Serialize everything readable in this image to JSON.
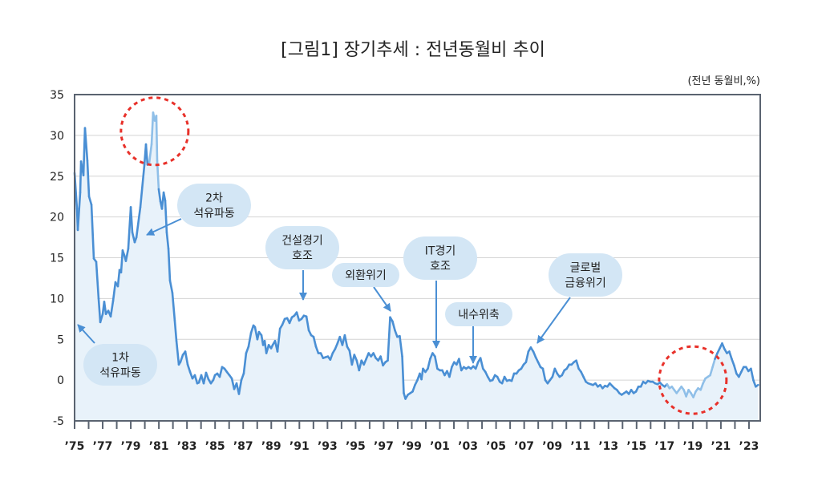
{
  "title": "[그림1]  장기추세 : 전년동월비 추이",
  "unit_label": "(전년 동월비,%)",
  "colors": {
    "line": "#4a8fd4",
    "line_highlight": "#8fbfe8",
    "fill": "#e8f2fa",
    "bubble": "#d3e6f5",
    "circle": "#e8312a",
    "axis": "#5a6370",
    "grid": "#d4d4d4"
  },
  "chart_data": {
    "type": "area",
    "title": "[그림1]  장기추세 : 전년동월비 추이",
    "ylabel": "(전년 동월비,%)",
    "xlabel": "",
    "ylim": [
      -5,
      35
    ],
    "xlim": [
      1975,
      2023.8
    ],
    "grid": true,
    "y_ticks": [
      "35",
      "30",
      "25",
      "20",
      "15",
      "10",
      "5",
      "0",
      "-5"
    ],
    "x_ticks": [
      {
        "year": 1975,
        "label": "’75"
      },
      {
        "year": 1977,
        "label": "’77"
      },
      {
        "year": 1979,
        "label": "’79"
      },
      {
        "year": 1981,
        "label": "’81"
      },
      {
        "year": 1983,
        "label": "’83"
      },
      {
        "year": 1985,
        "label": "’85"
      },
      {
        "year": 1987,
        "label": "’87"
      },
      {
        "year": 1989,
        "label": "’89"
      },
      {
        "year": 1991,
        "label": "’91"
      },
      {
        "year": 1993,
        "label": "’93"
      },
      {
        "year": 1995,
        "label": "’95"
      },
      {
        "year": 1997,
        "label": "’97"
      },
      {
        "year": 1999,
        "label": "’99"
      },
      {
        "year": 2001,
        "label": "’01"
      },
      {
        "year": 2003,
        "label": "’03"
      },
      {
        "year": 2005,
        "label": "’05"
      },
      {
        "year": 2007,
        "label": "’07"
      },
      {
        "year": 2009,
        "label": "’09"
      },
      {
        "year": 2011,
        "label": "’11"
      },
      {
        "year": 2013,
        "label": "’13"
      },
      {
        "year": 2015,
        "label": "’15"
      },
      {
        "year": 2017,
        "label": "’17"
      },
      {
        "year": 2019,
        "label": "’19"
      },
      {
        "year": 2021,
        "label": "’21"
      },
      {
        "year": 2023,
        "label": "’23"
      }
    ],
    "highlight_ranges": [
      [
        1980.3,
        1981.0
      ],
      [
        2017.2,
        2020.6
      ]
    ],
    "highlight_circles": [
      {
        "year": 1980.7,
        "value": 30.5
      },
      {
        "year": 2019.0,
        "value": 0.0
      }
    ],
    "annotations": [
      {
        "lines": [
          "1차",
          "석유파동"
        ]
      },
      {
        "lines": [
          "2차",
          "석유파동"
        ]
      },
      {
        "lines": [
          "건설경기",
          "호조"
        ]
      },
      {
        "lines": [
          "외환위기"
        ]
      },
      {
        "lines": [
          "IT경기",
          "호조"
        ]
      },
      {
        "lines": [
          "내수위축"
        ]
      },
      {
        "lines": [
          "글로벌",
          "금융위기"
        ]
      }
    ],
    "points": [
      [
        1975.0,
        25.4
      ],
      [
        1975.17,
        21.0
      ],
      [
        1975.23,
        18.4
      ],
      [
        1975.4,
        23.0
      ],
      [
        1975.46,
        26.8
      ],
      [
        1975.63,
        25.1
      ],
      [
        1975.74,
        30.9
      ],
      [
        1975.91,
        26.9
      ],
      [
        1976.03,
        22.5
      ],
      [
        1976.2,
        21.5
      ],
      [
        1976.37,
        14.9
      ],
      [
        1976.54,
        14.5
      ],
      [
        1976.71,
        10.0
      ],
      [
        1976.83,
        7.1
      ],
      [
        1977.0,
        8.1
      ],
      [
        1977.11,
        9.6
      ],
      [
        1977.23,
        8.1
      ],
      [
        1977.4,
        8.5
      ],
      [
        1977.57,
        7.8
      ],
      [
        1977.74,
        9.7
      ],
      [
        1977.91,
        12.0
      ],
      [
        1978.08,
        11.5
      ],
      [
        1978.2,
        13.5
      ],
      [
        1978.31,
        13.2
      ],
      [
        1978.42,
        15.9
      ],
      [
        1978.54,
        15.3
      ],
      [
        1978.65,
        14.6
      ],
      [
        1978.82,
        16.1
      ],
      [
        1979.0,
        21.2
      ],
      [
        1979.11,
        18.1
      ],
      [
        1979.28,
        16.9
      ],
      [
        1979.4,
        17.5
      ],
      [
        1979.68,
        21.2
      ],
      [
        1979.97,
        26.4
      ],
      [
        1980.08,
        28.9
      ],
      [
        1980.19,
        26.4
      ],
      [
        1980.31,
        26.6
      ],
      [
        1980.48,
        28.9
      ],
      [
        1980.59,
        32.8
      ],
      [
        1980.71,
        31.8
      ],
      [
        1980.82,
        32.4
      ],
      [
        1980.88,
        26.9
      ],
      [
        1980.99,
        23.4
      ],
      [
        1981.11,
        21.9
      ],
      [
        1981.22,
        21.0
      ],
      [
        1981.34,
        23.0
      ],
      [
        1981.45,
        22.0
      ],
      [
        1981.56,
        18.1
      ],
      [
        1981.68,
        16.1
      ],
      [
        1981.79,
        12.2
      ],
      [
        1981.96,
        10.7
      ],
      [
        1982.13,
        7.3
      ],
      [
        1982.25,
        4.8
      ],
      [
        1982.42,
        1.9
      ],
      [
        1982.53,
        2.2
      ],
      [
        1982.71,
        3.1
      ],
      [
        1982.88,
        3.5
      ],
      [
        1983.05,
        1.9
      ],
      [
        1983.22,
        1.0
      ],
      [
        1983.39,
        0.2
      ],
      [
        1983.56,
        0.6
      ],
      [
        1983.73,
        -0.4
      ],
      [
        1983.85,
        -0.3
      ],
      [
        1984.02,
        0.6
      ],
      [
        1984.19,
        -0.4
      ],
      [
        1984.36,
        0.9
      ],
      [
        1984.53,
        0.1
      ],
      [
        1984.7,
        -0.4
      ],
      [
        1984.87,
        0.0
      ],
      [
        1984.99,
        0.6
      ],
      [
        1985.16,
        0.8
      ],
      [
        1985.33,
        0.4
      ],
      [
        1985.5,
        1.6
      ],
      [
        1985.67,
        1.4
      ],
      [
        1985.84,
        1.0
      ],
      [
        1986.02,
        0.6
      ],
      [
        1986.19,
        0.2
      ],
      [
        1986.36,
        -1.1
      ],
      [
        1986.53,
        -0.4
      ],
      [
        1986.7,
        -1.7
      ],
      [
        1986.87,
        0.0
      ],
      [
        1987.04,
        0.8
      ],
      [
        1987.21,
        3.3
      ],
      [
        1987.38,
        4.1
      ],
      [
        1987.56,
        5.8
      ],
      [
        1987.73,
        6.7
      ],
      [
        1987.84,
        6.5
      ],
      [
        1988.01,
        5.0
      ],
      [
        1988.13,
        5.9
      ],
      [
        1988.3,
        5.5
      ],
      [
        1988.42,
        4.3
      ],
      [
        1988.53,
        4.8
      ],
      [
        1988.65,
        3.3
      ],
      [
        1988.82,
        4.3
      ],
      [
        1988.99,
        3.9
      ],
      [
        1989.1,
        4.3
      ],
      [
        1989.27,
        4.8
      ],
      [
        1989.44,
        3.5
      ],
      [
        1989.62,
        6.3
      ],
      [
        1989.79,
        6.8
      ],
      [
        1989.96,
        7.5
      ],
      [
        1990.13,
        7.6
      ],
      [
        1990.3,
        7.0
      ],
      [
        1990.47,
        7.7
      ],
      [
        1990.64,
        7.9
      ],
      [
        1990.81,
        8.3
      ],
      [
        1990.98,
        7.3
      ],
      [
        1991.15,
        7.5
      ],
      [
        1991.32,
        7.9
      ],
      [
        1991.5,
        7.8
      ],
      [
        1991.67,
        6.1
      ],
      [
        1991.84,
        5.5
      ],
      [
        1992.01,
        5.3
      ],
      [
        1992.18,
        4.1
      ],
      [
        1992.35,
        3.3
      ],
      [
        1992.52,
        3.3
      ],
      [
        1992.69,
        2.7
      ],
      [
        1992.86,
        2.8
      ],
      [
        1993.03,
        2.9
      ],
      [
        1993.2,
        2.5
      ],
      [
        1993.37,
        3.3
      ],
      [
        1993.54,
        3.8
      ],
      [
        1993.71,
        4.5
      ],
      [
        1993.88,
        5.3
      ],
      [
        1994.06,
        4.3
      ],
      [
        1994.23,
        5.5
      ],
      [
        1994.4,
        4.1
      ],
      [
        1994.57,
        3.6
      ],
      [
        1994.74,
        1.9
      ],
      [
        1994.91,
        3.1
      ],
      [
        1995.08,
        2.4
      ],
      [
        1995.25,
        1.2
      ],
      [
        1995.42,
        2.4
      ],
      [
        1995.59,
        1.9
      ],
      [
        1995.76,
        2.6
      ],
      [
        1995.93,
        3.3
      ],
      [
        1996.1,
        2.9
      ],
      [
        1996.27,
        3.3
      ],
      [
        1996.44,
        2.7
      ],
      [
        1996.61,
        2.4
      ],
      [
        1996.78,
        2.9
      ],
      [
        1996.95,
        1.8
      ],
      [
        1997.12,
        2.2
      ],
      [
        1997.29,
        2.4
      ],
      [
        1997.46,
        7.7
      ],
      [
        1997.63,
        7.2
      ],
      [
        1997.8,
        6.1
      ],
      [
        1997.97,
        5.3
      ],
      [
        1998.14,
        5.4
      ],
      [
        1998.32,
        2.9
      ],
      [
        1998.43,
        -1.6
      ],
      [
        1998.55,
        -2.3
      ],
      [
        1998.72,
        -1.8
      ],
      [
        1998.89,
        -1.6
      ],
      [
        1999.06,
        -1.4
      ],
      [
        1999.23,
        -0.6
      ],
      [
        1999.4,
        0.0
      ],
      [
        1999.57,
        0.8
      ],
      [
        1999.69,
        0.1
      ],
      [
        1999.8,
        1.4
      ],
      [
        1999.97,
        1.0
      ],
      [
        2000.14,
        1.4
      ],
      [
        2000.31,
        2.6
      ],
      [
        2000.48,
        3.3
      ],
      [
        2000.65,
        2.9
      ],
      [
        2000.82,
        1.4
      ],
      [
        2001.0,
        1.2
      ],
      [
        2001.17,
        1.2
      ],
      [
        2001.34,
        0.6
      ],
      [
        2001.51,
        1.1
      ],
      [
        2001.68,
        0.4
      ],
      [
        2001.85,
        1.6
      ],
      [
        2002.02,
        2.2
      ],
      [
        2002.19,
        1.9
      ],
      [
        2002.36,
        2.6
      ],
      [
        2002.53,
        1.2
      ],
      [
        2002.7,
        1.6
      ],
      [
        2002.87,
        1.4
      ],
      [
        2003.04,
        1.6
      ],
      [
        2003.21,
        1.4
      ],
      [
        2003.38,
        1.7
      ],
      [
        2003.55,
        1.4
      ],
      [
        2003.72,
        2.2
      ],
      [
        2003.89,
        2.7
      ],
      [
        2004.07,
        1.4
      ],
      [
        2004.24,
        1.0
      ],
      [
        2004.41,
        0.4
      ],
      [
        2004.58,
        -0.1
      ],
      [
        2004.75,
        0.0
      ],
      [
        2004.92,
        0.6
      ],
      [
        2005.09,
        0.4
      ],
      [
        2005.26,
        -0.2
      ],
      [
        2005.43,
        -0.4
      ],
      [
        2005.6,
        0.4
      ],
      [
        2005.77,
        -0.1
      ],
      [
        2005.94,
        0.0
      ],
      [
        2006.11,
        -0.1
      ],
      [
        2006.28,
        0.8
      ],
      [
        2006.45,
        0.8
      ],
      [
        2006.62,
        1.2
      ],
      [
        2006.79,
        1.4
      ],
      [
        2006.96,
        1.9
      ],
      [
        2007.13,
        2.2
      ],
      [
        2007.3,
        3.5
      ],
      [
        2007.47,
        4.0
      ],
      [
        2007.65,
        3.5
      ],
      [
        2007.82,
        2.8
      ],
      [
        2007.99,
        2.2
      ],
      [
        2008.16,
        1.6
      ],
      [
        2008.33,
        1.4
      ],
      [
        2008.5,
        0.0
      ],
      [
        2008.67,
        -0.4
      ],
      [
        2008.84,
        0.0
      ],
      [
        2009.01,
        0.4
      ],
      [
        2009.18,
        1.4
      ],
      [
        2009.35,
        0.8
      ],
      [
        2009.52,
        0.4
      ],
      [
        2009.69,
        0.6
      ],
      [
        2009.86,
        1.2
      ],
      [
        2010.03,
        1.4
      ],
      [
        2010.2,
        1.9
      ],
      [
        2010.37,
        1.9
      ],
      [
        2010.54,
        2.2
      ],
      [
        2010.71,
        2.4
      ],
      [
        2010.88,
        1.4
      ],
      [
        2011.05,
        1.0
      ],
      [
        2011.22,
        0.4
      ],
      [
        2011.39,
        -0.2
      ],
      [
        2011.56,
        -0.4
      ],
      [
        2011.73,
        -0.5
      ],
      [
        2011.9,
        -0.6
      ],
      [
        2012.07,
        -0.4
      ],
      [
        2012.24,
        -0.8
      ],
      [
        2012.41,
        -0.6
      ],
      [
        2012.58,
        -1.0
      ],
      [
        2012.75,
        -0.7
      ],
      [
        2012.92,
        -0.8
      ],
      [
        2013.09,
        -0.4
      ],
      [
        2013.26,
        -0.7
      ],
      [
        2013.43,
        -1.0
      ],
      [
        2013.6,
        -1.2
      ],
      [
        2013.77,
        -1.6
      ],
      [
        2013.94,
        -1.8
      ],
      [
        2014.11,
        -1.6
      ],
      [
        2014.28,
        -1.4
      ],
      [
        2014.45,
        -1.7
      ],
      [
        2014.62,
        -1.2
      ],
      [
        2014.79,
        -1.6
      ],
      [
        2014.96,
        -1.4
      ],
      [
        2015.13,
        -0.8
      ],
      [
        2015.3,
        -0.8
      ],
      [
        2015.47,
        -0.2
      ],
      [
        2015.64,
        -0.4
      ],
      [
        2015.81,
        -0.1
      ],
      [
        2015.98,
        -0.2
      ],
      [
        2016.15,
        -0.2
      ],
      [
        2016.32,
        -0.4
      ],
      [
        2016.49,
        -0.5
      ],
      [
        2016.66,
        -0.3
      ],
      [
        2016.83,
        -0.6
      ],
      [
        2017.0,
        -0.8
      ],
      [
        2017.17,
        -0.5
      ],
      [
        2017.34,
        -1.0
      ],
      [
        2017.51,
        -0.8
      ],
      [
        2017.68,
        -1.2
      ],
      [
        2017.85,
        -1.6
      ],
      [
        2018.02,
        -1.2
      ],
      [
        2018.19,
        -0.8
      ],
      [
        2018.36,
        -1.2
      ],
      [
        2018.53,
        -2.0
      ],
      [
        2018.7,
        -1.2
      ],
      [
        2018.87,
        -1.6
      ],
      [
        2019.04,
        -2.1
      ],
      [
        2019.21,
        -1.4
      ],
      [
        2019.38,
        -1.0
      ],
      [
        2019.56,
        -1.2
      ],
      [
        2019.73,
        -0.4
      ],
      [
        2019.9,
        0.2
      ],
      [
        2020.07,
        0.4
      ],
      [
        2020.24,
        0.6
      ],
      [
        2020.41,
        1.6
      ],
      [
        2020.58,
        2.6
      ],
      [
        2020.75,
        3.3
      ],
      [
        2020.92,
        3.9
      ],
      [
        2021.09,
        4.5
      ],
      [
        2021.26,
        3.8
      ],
      [
        2021.43,
        3.3
      ],
      [
        2021.6,
        3.5
      ],
      [
        2021.77,
        2.6
      ],
      [
        2021.94,
        1.8
      ],
      [
        2022.11,
        0.8
      ],
      [
        2022.28,
        0.4
      ],
      [
        2022.45,
        1.0
      ],
      [
        2022.62,
        1.6
      ],
      [
        2022.79,
        1.6
      ],
      [
        2022.96,
        1.1
      ],
      [
        2023.14,
        1.4
      ],
      [
        2023.31,
        0.0
      ],
      [
        2023.48,
        -0.8
      ],
      [
        2023.65,
        -0.6
      ]
    ]
  }
}
